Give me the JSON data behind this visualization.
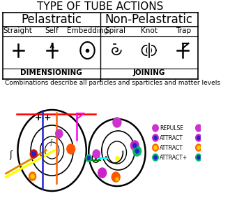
{
  "title": "TYPE OF TUBE ACTIONS",
  "col1_header": "Pelastratic",
  "col2_header": "Non-Pelastratic",
  "labels_left": [
    "Straight",
    "Self",
    "Embedding"
  ],
  "labels_right": [
    "Spiral",
    "Knot",
    "Trap"
  ],
  "dim_label": "DIMENSIONING",
  "join_label": "JOINING",
  "combo_text": "Combinations describe all particles and sparticles and matter levels",
  "legend_labels": [
    "REPULSE",
    "ATTRACT",
    "ATTRACT",
    "ATTRACT+"
  ],
  "bg_color": "#ffffff"
}
